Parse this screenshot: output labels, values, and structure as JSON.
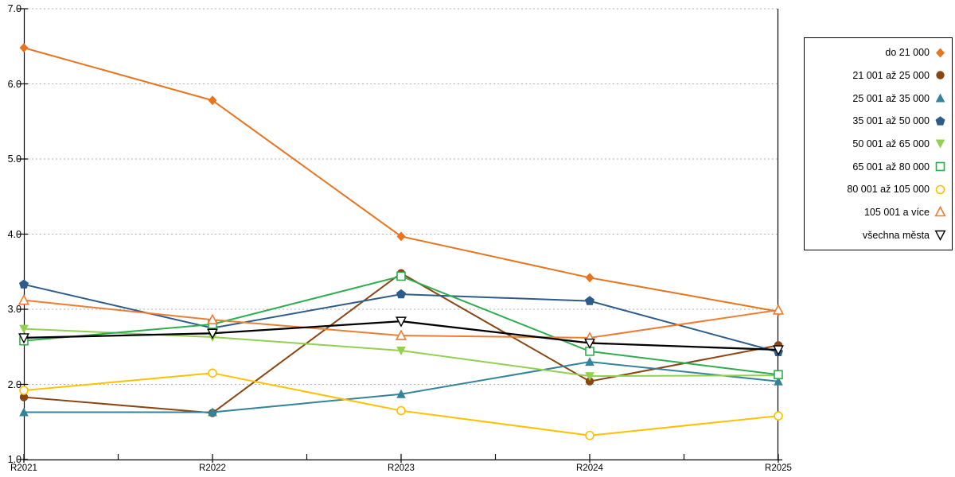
{
  "chart_data": {
    "type": "line",
    "title": "",
    "xlabel": "",
    "ylabel": "",
    "x": [
      "R2021",
      "R2022",
      "R2023",
      "R2024",
      "R2025"
    ],
    "ylim": [
      1.0,
      7.0
    ],
    "ytick_step": 1.0,
    "ytick_labels": [
      "7.0",
      "6.0",
      "5.0",
      "4.0",
      "3.0",
      "2.0",
      "1.0"
    ],
    "grid": "horizontal dotted lines at each 1.0",
    "legend_position": "right outside",
    "colors": {
      "axis": "#000000",
      "grid": "#b3b3b3",
      "background": "#ffffff"
    },
    "series": [
      {
        "name": "do 21 000",
        "color": "#E8741E",
        "marker": "diamond",
        "values": [
          6.48,
          5.78,
          3.97,
          3.42,
          2.97
        ]
      },
      {
        "name": "21 001 až 25 000",
        "color": "#8B4513",
        "marker": "circle",
        "values": [
          1.83,
          1.62,
          3.48,
          2.04,
          2.52
        ]
      },
      {
        "name": "25 001 až 35 000",
        "color": "#31849B",
        "marker": "triangle-up",
        "values": [
          1.63,
          1.63,
          1.87,
          2.3,
          2.04
        ]
      },
      {
        "name": "35 001 až 50 000",
        "color": "#2E5C8A",
        "marker": "pentagon",
        "values": [
          3.33,
          2.75,
          3.2,
          3.11,
          2.43
        ]
      },
      {
        "name": "50 001 až 65 000",
        "color": "#92D050",
        "marker": "triangle-down",
        "values": [
          2.74,
          2.63,
          2.45,
          2.11,
          2.12
        ]
      },
      {
        "name": "65 001 až 80 000",
        "color": "#2EAD4E",
        "marker": "square-open",
        "values": [
          2.58,
          2.8,
          3.44,
          2.44,
          2.13
        ]
      },
      {
        "name": "80 001 až 105 000",
        "color": "#FFC000",
        "marker": "circle-open",
        "values": [
          1.92,
          2.15,
          1.65,
          1.32,
          1.58
        ]
      },
      {
        "name": "105 001 a více",
        "color": "#ED7D31",
        "marker": "triangle-up-open",
        "values": [
          3.12,
          2.86,
          2.65,
          2.62,
          2.99
        ]
      },
      {
        "name": "všechna města",
        "color": "#000000",
        "marker": "triangle-down-open",
        "values": [
          2.62,
          2.68,
          2.84,
          2.55,
          2.46
        ]
      }
    ]
  }
}
